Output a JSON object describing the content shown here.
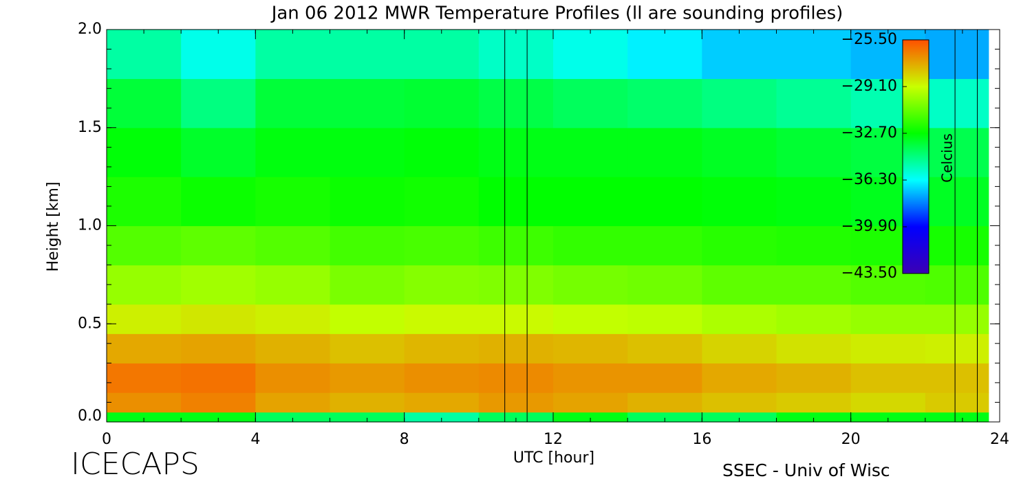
{
  "chart_data": {
    "type": "heatmap",
    "title": "Jan 06 2012 MWR Temperature Profiles (ll are sounding profiles)",
    "x_label": "UTC [hour]",
    "y_label": "Height [km]",
    "colorbar_label": "Celcius",
    "footer_left": "ICECAPS",
    "footer_right": "SSEC - Univ of Wisc",
    "xlim": [
      0,
      24
    ],
    "xticks": [
      0,
      4,
      8,
      12,
      16,
      20,
      24
    ],
    "ylim": [
      0,
      2
    ],
    "yticks": [
      {
        "value": 0,
        "label": "0.0"
      },
      {
        "value": 0.5,
        "label": "0.5"
      },
      {
        "value": 1,
        "label": "1.0"
      },
      {
        "value": 1.5,
        "label": "1.5"
      },
      {
        "value": 2,
        "label": "2.0"
      }
    ],
    "clim": [
      -43.5,
      -25.5
    ],
    "cticks": [
      {
        "value": -25.5,
        "label": "−25.50"
      },
      {
        "value": -29.1,
        "label": "−29.10"
      },
      {
        "value": -32.7,
        "label": "−32.70"
      },
      {
        "value": -36.3,
        "label": "−36.30"
      },
      {
        "value": -39.9,
        "label": "−39.90"
      },
      {
        "value": -43.5,
        "label": "−43.50"
      }
    ],
    "colormap": [
      "#3c00b4",
      "#0000ff",
      "#00ffff",
      "#00ff00",
      "#c8ff00",
      "#ff5000"
    ],
    "x_edges": [
      0,
      2,
      4,
      6,
      8,
      10,
      12,
      14,
      16,
      18,
      20,
      22,
      23.7
    ],
    "y_edges": [
      0,
      0.05,
      0.15,
      0.3,
      0.45,
      0.6,
      0.8,
      1.0,
      1.25,
      1.5,
      1.75,
      2.0
    ],
    "z": [
      [
        -33,
        -33,
        -34,
        -34,
        -35,
        -34,
        -33,
        -34,
        -34,
        -33,
        -33,
        -33
      ],
      [
        -26.8,
        -26.5,
        -27.2,
        -27.5,
        -27.3,
        -27,
        -27.2,
        -27.5,
        -27.8,
        -28,
        -28.3,
        -28
      ],
      [
        -26.3,
        -26.2,
        -26.8,
        -27,
        -26.8,
        -26.7,
        -26.9,
        -26.9,
        -27.3,
        -27.5,
        -27.8,
        -27.8
      ],
      [
        -27.3,
        -27.2,
        -27.5,
        -27.8,
        -27.6,
        -27.5,
        -27.6,
        -27.8,
        -28.2,
        -28.5,
        -28.7,
        -28.8
      ],
      [
        -28.8,
        -28.6,
        -28.8,
        -29.2,
        -29,
        -29,
        -29.2,
        -29.3,
        -29.6,
        -29.8,
        -30,
        -30
      ],
      [
        -30,
        -29.8,
        -30,
        -30.5,
        -30.3,
        -30.4,
        -30.6,
        -30.7,
        -31,
        -31,
        -31.2,
        -31.3
      ],
      [
        -31.2,
        -31,
        -31.2,
        -31.5,
        -31.4,
        -31.6,
        -31.8,
        -31.8,
        -32,
        -32.1,
        -32.2,
        -32.3
      ],
      [
        -32.2,
        -32.5,
        -32.3,
        -32.5,
        -32.4,
        -32.7,
        -32.7,
        -32.7,
        -32.8,
        -32.9,
        -33.1,
        -33.2
      ],
      [
        -32.8,
        -33.3,
        -32.9,
        -32.9,
        -32.8,
        -33,
        -33,
        -33,
        -33.2,
        -33.4,
        -33.6,
        -33.8
      ],
      [
        -33.5,
        -34.5,
        -33.5,
        -33.5,
        -33.4,
        -33.7,
        -34,
        -34.2,
        -34.5,
        -34.8,
        -35.2,
        -35.5
      ],
      [
        -35,
        -36,
        -35,
        -35,
        -35,
        -35.5,
        -36,
        -36.5,
        -37,
        -37,
        -37.3,
        -37.5
      ]
    ],
    "soundings": [
      10.7,
      11.3,
      22.8,
      23.4
    ]
  }
}
